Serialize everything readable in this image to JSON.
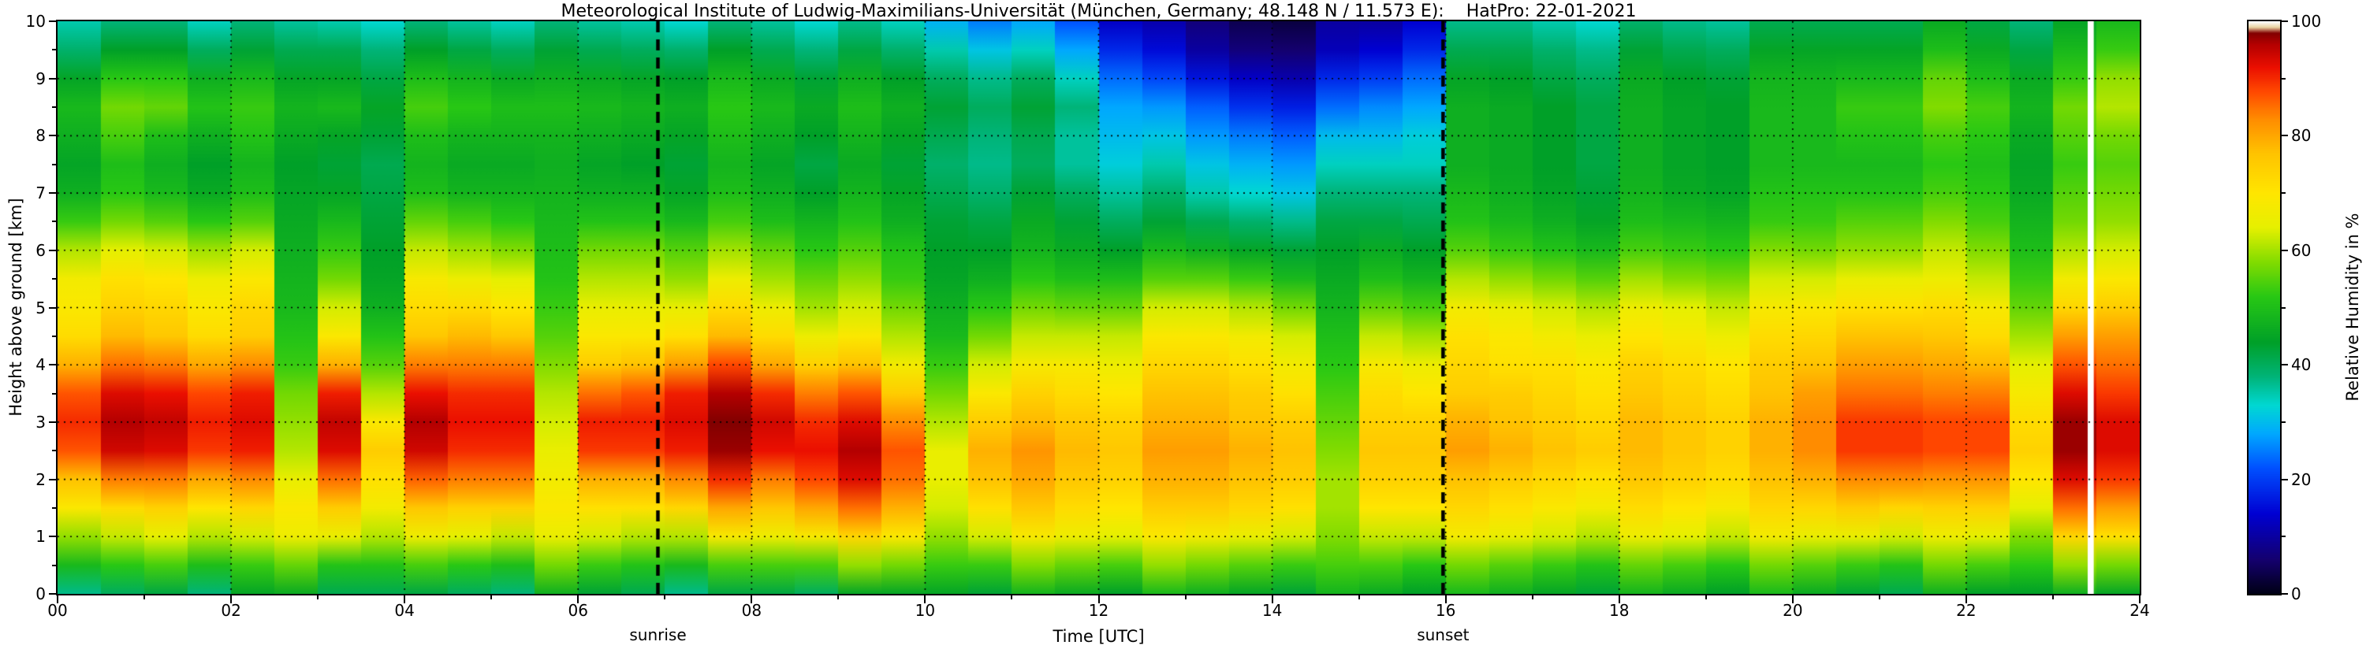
{
  "figure": {
    "background": "#ffffff",
    "frame_color": "#000000"
  },
  "chart_data": {
    "type": "heatmap",
    "title": "Meteorological Institute of Ludwig-Maximilians-Universität (München, Germany; 48.148 N / 11.573 E):    HatPro: 22-01-2021",
    "xlabel": "Time [UTC]",
    "ylabel": "Height above ground [km]",
    "colorbar_label": "Relative Humidity in %",
    "x_range": [
      0,
      24
    ],
    "y_range": [
      0,
      10
    ],
    "value_range": [
      0,
      100
    ],
    "x_tick_labels": [
      "00",
      "02",
      "04",
      "06",
      "08",
      "10",
      "12",
      "14",
      "16",
      "18",
      "20",
      "22",
      "24"
    ],
    "x_tick_values": [
      0,
      2,
      4,
      6,
      8,
      10,
      12,
      14,
      16,
      18,
      20,
      22,
      24
    ],
    "y_tick_labels": [
      "0",
      "1",
      "2",
      "3",
      "4",
      "5",
      "6",
      "7",
      "8",
      "9",
      "10"
    ],
    "y_tick_values": [
      0,
      1,
      2,
      3,
      4,
      5,
      6,
      7,
      8,
      9,
      10
    ],
    "colorbar_tick_labels": [
      "0",
      "20",
      "40",
      "60",
      "80",
      "100"
    ],
    "colorbar_tick_values": [
      0,
      20,
      40,
      60,
      80,
      100
    ],
    "grid": {
      "shown": true,
      "style": "dotted",
      "color": "#000000"
    },
    "legend_position": "right-colorbar",
    "events": {
      "sunrise": {
        "label": "sunrise",
        "time_utc": 6.92,
        "line_style": "dashed",
        "line_color": "#000000"
      },
      "sunset": {
        "label": "sunset",
        "time_utc": 15.97,
        "line_style": "dashed",
        "line_color": "#000000"
      }
    },
    "data_gap": {
      "time_start_utc": 23.4,
      "time_end_utc": 23.47,
      "color": "#ffffff"
    },
    "colormap_stops": [
      [
        0,
        "#000014"
      ],
      [
        6,
        "#14006e"
      ],
      [
        14,
        "#0000d2"
      ],
      [
        22,
        "#0050ff"
      ],
      [
        28,
        "#00a8ff"
      ],
      [
        33,
        "#00d8d2"
      ],
      [
        38,
        "#00b478"
      ],
      [
        44,
        "#00a028"
      ],
      [
        52,
        "#28c814"
      ],
      [
        58,
        "#82dc00"
      ],
      [
        64,
        "#e6f000"
      ],
      [
        70,
        "#ffe600"
      ],
      [
        77,
        "#ffc300"
      ],
      [
        83,
        "#ff8c00"
      ],
      [
        88,
        "#ff4600"
      ],
      [
        92,
        "#eb0f00"
      ],
      [
        96,
        "#b40000"
      ],
      [
        98,
        "#820000"
      ],
      [
        99,
        "#e8d2a0"
      ],
      [
        100,
        "#ffffff"
      ]
    ],
    "time_step_hours": 0.5,
    "height_levels_km": [
      0,
      0.5,
      1,
      1.5,
      2,
      2.5,
      3,
      3.5,
      4,
      4.5,
      5,
      5.5,
      6,
      6.5,
      7,
      7.5,
      8,
      8.5,
      9,
      9.5,
      10
    ],
    "columns_rh_percent": [
      [
        40,
        52,
        62,
        72,
        80,
        90,
        93,
        90,
        82,
        75,
        72,
        70,
        64,
        56,
        50,
        48,
        50,
        52,
        48,
        42,
        38
      ],
      [
        38,
        50,
        60,
        70,
        82,
        92,
        94,
        91,
        83,
        76,
        72,
        69,
        62,
        55,
        50,
        48,
        52,
        55,
        50,
        42,
        36
      ],
      [
        42,
        54,
        64,
        74,
        84,
        93,
        95,
        92,
        84,
        76,
        73,
        70,
        63,
        55,
        49,
        47,
        50,
        56,
        52,
        44,
        38
      ],
      [
        40,
        52,
        63,
        72,
        82,
        91,
        93,
        90,
        82,
        74,
        71,
        68,
        62,
        54,
        48,
        46,
        49,
        53,
        49,
        42,
        36
      ],
      [
        42,
        50,
        60,
        70,
        80,
        88,
        90,
        88,
        80,
        72,
        70,
        66,
        60,
        52,
        47,
        45,
        48,
        50,
        46,
        40,
        35
      ],
      [
        45,
        55,
        65,
        68,
        64,
        60,
        58,
        56,
        52,
        50,
        48,
        47,
        46,
        45,
        44,
        43,
        45,
        47,
        44,
        40,
        35
      ],
      [
        42,
        52,
        66,
        76,
        86,
        94,
        96,
        92,
        80,
        70,
        64,
        58,
        54,
        50,
        46,
        44,
        46,
        50,
        46,
        42,
        36
      ],
      [
        44,
        54,
        64,
        70,
        74,
        78,
        72,
        64,
        58,
        54,
        50,
        48,
        47,
        46,
        45,
        44,
        46,
        48,
        45,
        41,
        36
      ],
      [
        40,
        52,
        64,
        74,
        84,
        92,
        94,
        90,
        82,
        74,
        70,
        66,
        60,
        54,
        48,
        46,
        48,
        52,
        48,
        42,
        36
      ],
      [
        40,
        52,
        64,
        74,
        84,
        90,
        92,
        90,
        84,
        78,
        72,
        66,
        60,
        54,
        48,
        46,
        48,
        52,
        48,
        42,
        36
      ],
      [
        40,
        52,
        64,
        76,
        86,
        92,
        94,
        92,
        86,
        78,
        72,
        66,
        60,
        54,
        50,
        48,
        50,
        52,
        48,
        42,
        36
      ],
      [
        44,
        54,
        62,
        66,
        64,
        62,
        60,
        58,
        55,
        52,
        50,
        48,
        47,
        46,
        45,
        44,
        45,
        47,
        44,
        40,
        35
      ],
      [
        42,
        52,
        62,
        70,
        78,
        88,
        90,
        84,
        74,
        68,
        64,
        60,
        56,
        50,
        46,
        44,
        46,
        48,
        45,
        40,
        35
      ],
      [
        42,
        52,
        62,
        72,
        80,
        90,
        92,
        88,
        78,
        70,
        66,
        62,
        58,
        52,
        48,
        45,
        47,
        49,
        46,
        41,
        36
      ],
      [
        40,
        52,
        64,
        76,
        86,
        94,
        96,
        94,
        84,
        74,
        68,
        62,
        58,
        52,
        48,
        46,
        48,
        50,
        47,
        42,
        36
      ],
      [
        40,
        52,
        66,
        78,
        88,
        95,
        96,
        94,
        86,
        76,
        70,
        64,
        58,
        52,
        48,
        46,
        48,
        50,
        47,
        42,
        36
      ],
      [
        42,
        54,
        66,
        76,
        84,
        92,
        94,
        90,
        80,
        72,
        66,
        60,
        56,
        50,
        47,
        45,
        47,
        49,
        46,
        41,
        36
      ],
      [
        42,
        56,
        70,
        82,
        90,
        94,
        92,
        86,
        76,
        68,
        62,
        58,
        54,
        50,
        46,
        44,
        46,
        48,
        45,
        40,
        35
      ],
      [
        42,
        56,
        70,
        82,
        90,
        93,
        90,
        84,
        74,
        66,
        60,
        56,
        52,
        48,
        45,
        43,
        45,
        47,
        44,
        39,
        34
      ],
      [
        44,
        56,
        68,
        78,
        84,
        86,
        82,
        74,
        66,
        60,
        56,
        52,
        50,
        46,
        44,
        42,
        44,
        46,
        43,
        38,
        33
      ],
      [
        46,
        54,
        60,
        64,
        66,
        66,
        62,
        58,
        54,
        50,
        48,
        46,
        45,
        44,
        42,
        40,
        42,
        44,
        41,
        36,
        30
      ],
      [
        46,
        56,
        66,
        74,
        80,
        82,
        78,
        72,
        66,
        60,
        55,
        50,
        47,
        45,
        42,
        40,
        41,
        43,
        40,
        34,
        28
      ],
      [
        46,
        56,
        66,
        74,
        78,
        80,
        76,
        72,
        66,
        60,
        55,
        50,
        46,
        44,
        41,
        38,
        39,
        41,
        38,
        32,
        26
      ],
      [
        46,
        56,
        66,
        72,
        76,
        78,
        76,
        72,
        68,
        62,
        56,
        50,
        46,
        43,
        40,
        36,
        36,
        38,
        34,
        28,
        22
      ],
      [
        46,
        56,
        66,
        72,
        76,
        78,
        76,
        72,
        68,
        64,
        58,
        52,
        46,
        42,
        38,
        34,
        32,
        30,
        26,
        20,
        15
      ],
      [
        46,
        56,
        66,
        72,
        76,
        78,
        76,
        74,
        70,
        66,
        60,
        52,
        46,
        40,
        36,
        32,
        28,
        24,
        18,
        12,
        8
      ],
      [
        46,
        56,
        66,
        74,
        78,
        80,
        78,
        76,
        72,
        68,
        62,
        54,
        46,
        40,
        34,
        30,
        26,
        22,
        15,
        9,
        6
      ],
      [
        46,
        56,
        66,
        74,
        78,
        80,
        78,
        76,
        72,
        68,
        62,
        54,
        46,
        40,
        34,
        30,
        26,
        20,
        14,
        8,
        5
      ],
      [
        46,
        56,
        66,
        74,
        78,
        80,
        78,
        74,
        70,
        66,
        60,
        52,
        46,
        40,
        34,
        30,
        26,
        20,
        14,
        9,
        6
      ],
      [
        46,
        52,
        56,
        58,
        58,
        56,
        54,
        52,
        50,
        48,
        46,
        44,
        42,
        40,
        36,
        32,
        28,
        22,
        16,
        10,
        8
      ],
      [
        46,
        54,
        62,
        70,
        74,
        76,
        74,
        72,
        68,
        62,
        56,
        50,
        46,
        42,
        38,
        34,
        30,
        26,
        20,
        14,
        10
      ],
      [
        46,
        54,
        64,
        72,
        76,
        78,
        76,
        72,
        68,
        62,
        56,
        50,
        46,
        43,
        40,
        36,
        34,
        30,
        26,
        20,
        16
      ],
      [
        46,
        54,
        64,
        70,
        74,
        78,
        76,
        72,
        70,
        68,
        64,
        58,
        52,
        48,
        46,
        44,
        44,
        44,
        42,
        38,
        34
      ],
      [
        46,
        54,
        64,
        70,
        74,
        78,
        76,
        74,
        70,
        68,
        64,
        58,
        52,
        48,
        46,
        45,
        45,
        45,
        43,
        40,
        36
      ],
      [
        46,
        54,
        64,
        70,
        74,
        78,
        76,
        74,
        72,
        68,
        64,
        58,
        52,
        48,
        46,
        45,
        45,
        45,
        43,
        40,
        36
      ],
      [
        46,
        54,
        64,
        70,
        74,
        78,
        76,
        74,
        72,
        68,
        64,
        58,
        52,
        48,
        46,
        45,
        45,
        45,
        43,
        40,
        36
      ],
      [
        46,
        54,
        64,
        70,
        74,
        76,
        76,
        74,
        72,
        68,
        64,
        58,
        52,
        48,
        46,
        45,
        45,
        45,
        44,
        41,
        37
      ],
      [
        46,
        54,
        64,
        70,
        74,
        76,
        76,
        74,
        72,
        68,
        64,
        58,
        53,
        49,
        46,
        45,
        45,
        45,
        44,
        41,
        37
      ],
      [
        46,
        54,
        64,
        70,
        74,
        76,
        76,
        74,
        72,
        68,
        64,
        59,
        54,
        50,
        47,
        46,
        46,
        46,
        45,
        42,
        38
      ],
      [
        46,
        54,
        64,
        70,
        74,
        76,
        76,
        74,
        72,
        69,
        65,
        60,
        55,
        50,
        48,
        46,
        46,
        46,
        45,
        42,
        38
      ],
      [
        45,
        54,
        64,
        72,
        78,
        82,
        82,
        80,
        76,
        72,
        68,
        62,
        56,
        52,
        50,
        48,
        48,
        48,
        47,
        44,
        40
      ],
      [
        44,
        54,
        66,
        76,
        84,
        90,
        90,
        86,
        82,
        78,
        72,
        66,
        60,
        56,
        52,
        50,
        52,
        54,
        50,
        46,
        42
      ],
      [
        44,
        54,
        66,
        76,
        86,
        92,
        92,
        88,
        84,
        80,
        74,
        68,
        62,
        58,
        54,
        52,
        54,
        56,
        52,
        48,
        44
      ],
      [
        45,
        55,
        64,
        72,
        80,
        86,
        86,
        82,
        78,
        74,
        70,
        64,
        60,
        56,
        52,
        50,
        52,
        56,
        54,
        48,
        44
      ],
      [
        44,
        54,
        64,
        74,
        82,
        88,
        88,
        84,
        78,
        72,
        68,
        62,
        58,
        54,
        52,
        50,
        52,
        54,
        50,
        46,
        42
      ],
      [
        46,
        54,
        60,
        66,
        72,
        76,
        74,
        70,
        66,
        62,
        58,
        55,
        52,
        50,
        48,
        47,
        48,
        50,
        48,
        44,
        40
      ],
      [
        44,
        56,
        70,
        82,
        90,
        94,
        94,
        90,
        84,
        78,
        70,
        64,
        58,
        54,
        52,
        50,
        52,
        54,
        50,
        46,
        42
      ],
      [
        44,
        56,
        70,
        80,
        88,
        92,
        92,
        88,
        84,
        80,
        74,
        68,
        62,
        58,
        56,
        54,
        56,
        60,
        58,
        52,
        48
      ]
    ]
  }
}
